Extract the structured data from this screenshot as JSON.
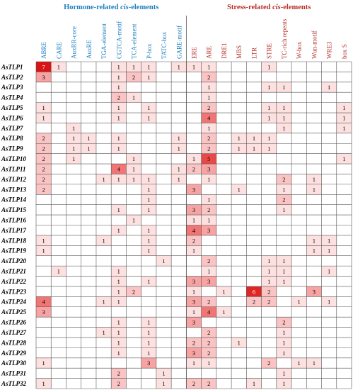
{
  "chart_data": {
    "type": "heatmap",
    "group_titles": [
      {
        "prefix": "Hormone-related ",
        "italic": "cis",
        "suffix": "-elements",
        "color": "#1f7fbf"
      },
      {
        "prefix": "Stress-related ",
        "italic": "cis",
        "suffix": "-elements",
        "color": "#b5312b"
      }
    ],
    "columns": [
      "ABRE",
      "CARE",
      "AuxRR-core",
      "AuxRE",
      "TGA-element",
      "CGTCA-motif",
      "TCA-element",
      "P-box",
      "TATC-box",
      "GARE-motif",
      "ERE",
      "ARE",
      "DRE1",
      "MBS",
      "LTR",
      "STRE",
      "TC-rich repeats",
      "W-box",
      "Wun-motif",
      "WRE3",
      "box S"
    ],
    "column_groups": [
      "hormone",
      "hormone",
      "hormone",
      "hormone",
      "hormone",
      "hormone",
      "hormone",
      "hormone",
      "hormone",
      "hormone",
      "stress",
      "stress",
      "stress",
      "stress",
      "stress",
      "stress",
      "stress",
      "stress",
      "stress",
      "stress",
      "stress"
    ],
    "rows": [
      "AsTLP1",
      "AsTLP2",
      "AsTLP3",
      "AsTLP4",
      "AsTLP5",
      "AsTLP6",
      "AsTLP7",
      "AsTLP8",
      "AsTLP9",
      "AsTLP10",
      "AsTLP11",
      "AsTLP12",
      "AsTLP13",
      "AsTLP14",
      "AsTLP15",
      "AsTLP16",
      "AsTLP17",
      "AsTLP18",
      "AsTLP19",
      "AsTLP20",
      "AsTLP21",
      "AsTLP22",
      "AsTLP23",
      "AsTLP24",
      "AsTLP25",
      "AsTLP26",
      "AsTLP27",
      "AsTLP28",
      "AsTLP29",
      "AsTLP30",
      "AsTLP31",
      "AsTLP32"
    ],
    "values": [
      [
        7,
        1,
        0,
        0,
        0,
        1,
        1,
        1,
        0,
        1,
        1,
        1,
        0,
        0,
        0,
        1,
        0,
        0,
        0,
        0,
        0
      ],
      [
        3,
        0,
        0,
        0,
        0,
        1,
        2,
        1,
        0,
        0,
        0,
        2,
        0,
        0,
        0,
        0,
        0,
        0,
        0,
        0,
        0
      ],
      [
        0,
        0,
        0,
        0,
        0,
        1,
        0,
        0,
        0,
        0,
        0,
        1,
        0,
        0,
        0,
        1,
        1,
        0,
        0,
        1,
        0
      ],
      [
        0,
        0,
        0,
        0,
        0,
        2,
        1,
        0,
        0,
        0,
        0,
        1,
        0,
        0,
        0,
        0,
        0,
        0,
        0,
        0,
        0
      ],
      [
        1,
        0,
        0,
        0,
        0,
        1,
        0,
        1,
        0,
        0,
        0,
        2,
        0,
        0,
        0,
        1,
        1,
        0,
        0,
        0,
        1
      ],
      [
        1,
        0,
        0,
        0,
        0,
        1,
        0,
        1,
        0,
        0,
        0,
        4,
        0,
        0,
        0,
        1,
        1,
        0,
        0,
        0,
        1
      ],
      [
        0,
        0,
        1,
        0,
        0,
        0,
        0,
        0,
        0,
        0,
        0,
        1,
        0,
        0,
        0,
        0,
        1,
        0,
        0,
        0,
        1
      ],
      [
        2,
        0,
        1,
        1,
        0,
        1,
        0,
        0,
        0,
        1,
        0,
        2,
        0,
        1,
        1,
        1,
        0,
        0,
        0,
        0,
        0
      ],
      [
        2,
        0,
        1,
        1,
        0,
        1,
        0,
        0,
        0,
        1,
        0,
        2,
        0,
        1,
        1,
        1,
        0,
        0,
        0,
        0,
        0
      ],
      [
        2,
        0,
        1,
        0,
        0,
        0,
        1,
        0,
        0,
        0,
        1,
        5,
        0,
        0,
        0,
        0,
        0,
        0,
        0,
        0,
        1
      ],
      [
        2,
        0,
        0,
        0,
        0,
        4,
        1,
        0,
        0,
        1,
        2,
        3,
        0,
        0,
        0,
        0,
        0,
        0,
        0,
        0,
        0
      ],
      [
        2,
        0,
        0,
        0,
        1,
        1,
        1,
        1,
        0,
        1,
        0,
        1,
        0,
        0,
        0,
        0,
        2,
        0,
        1,
        0,
        0
      ],
      [
        2,
        0,
        0,
        0,
        0,
        0,
        0,
        1,
        0,
        0,
        3,
        0,
        0,
        1,
        0,
        0,
        1,
        0,
        1,
        0,
        0
      ],
      [
        0,
        0,
        0,
        0,
        0,
        0,
        0,
        1,
        0,
        0,
        0,
        1,
        0,
        0,
        0,
        0,
        2,
        0,
        0,
        0,
        0
      ],
      [
        0,
        0,
        0,
        0,
        0,
        1,
        0,
        1,
        0,
        0,
        3,
        2,
        0,
        0,
        0,
        0,
        1,
        0,
        0,
        0,
        0
      ],
      [
        0,
        0,
        0,
        0,
        0,
        0,
        1,
        0,
        0,
        0,
        1,
        1,
        0,
        0,
        0,
        0,
        0,
        0,
        0,
        0,
        0
      ],
      [
        0,
        0,
        0,
        0,
        0,
        1,
        0,
        1,
        0,
        0,
        4,
        3,
        0,
        0,
        0,
        0,
        0,
        0,
        0,
        0,
        0
      ],
      [
        1,
        0,
        0,
        0,
        1,
        0,
        0,
        1,
        0,
        0,
        2,
        0,
        0,
        0,
        0,
        0,
        0,
        0,
        1,
        1,
        0
      ],
      [
        1,
        0,
        0,
        0,
        0,
        0,
        0,
        1,
        0,
        0,
        1,
        0,
        0,
        0,
        0,
        0,
        0,
        0,
        1,
        1,
        0
      ],
      [
        0,
        0,
        0,
        0,
        0,
        0,
        0,
        0,
        1,
        0,
        0,
        2,
        0,
        0,
        0,
        1,
        1,
        0,
        0,
        0,
        0
      ],
      [
        0,
        1,
        0,
        0,
        0,
        1,
        0,
        0,
        0,
        0,
        0,
        1,
        0,
        0,
        0,
        1,
        1,
        0,
        0,
        1,
        0
      ],
      [
        0,
        0,
        0,
        0,
        0,
        1,
        0,
        1,
        0,
        0,
        3,
        3,
        0,
        0,
        0,
        1,
        1,
        0,
        0,
        0,
        0
      ],
      [
        0,
        0,
        0,
        0,
        0,
        1,
        2,
        0,
        0,
        0,
        1,
        0,
        1,
        0,
        6,
        2,
        0,
        0,
        3,
        0,
        0
      ],
      [
        4,
        0,
        0,
        0,
        1,
        1,
        0,
        0,
        0,
        0,
        3,
        2,
        0,
        0,
        2,
        2,
        0,
        1,
        0,
        1,
        0
      ],
      [
        3,
        0,
        0,
        0,
        0,
        0,
        0,
        0,
        0,
        0,
        1,
        4,
        1,
        0,
        0,
        0,
        0,
        0,
        0,
        0,
        0
      ],
      [
        0,
        0,
        0,
        0,
        0,
        1,
        0,
        1,
        0,
        0,
        3,
        0,
        0,
        0,
        0,
        0,
        2,
        0,
        0,
        0,
        0
      ],
      [
        0,
        0,
        0,
        0,
        1,
        1,
        0,
        1,
        0,
        0,
        0,
        2,
        0,
        0,
        0,
        0,
        1,
        0,
        0,
        0,
        0
      ],
      [
        0,
        0,
        0,
        0,
        0,
        1,
        0,
        1,
        0,
        0,
        2,
        2,
        0,
        1,
        0,
        0,
        1,
        0,
        0,
        0,
        0
      ],
      [
        0,
        0,
        0,
        0,
        0,
        1,
        0,
        1,
        0,
        0,
        3,
        2,
        0,
        0,
        0,
        0,
        1,
        0,
        0,
        0,
        0
      ],
      [
        1,
        0,
        0,
        0,
        0,
        0,
        0,
        3,
        0,
        0,
        1,
        1,
        0,
        0,
        0,
        2,
        0,
        1,
        1,
        0,
        0
      ],
      [
        0,
        0,
        0,
        0,
        0,
        2,
        0,
        0,
        1,
        0,
        0,
        0,
        0,
        0,
        0,
        0,
        1,
        0,
        0,
        0,
        0
      ],
      [
        1,
        0,
        0,
        0,
        0,
        2,
        0,
        0,
        1,
        0,
        2,
        2,
        0,
        0,
        1,
        0,
        1,
        0,
        0,
        0,
        0
      ]
    ],
    "color_scale": {
      "0": "#ffffff",
      "1": "#fde0e0",
      "2": "#fbc4c4",
      "3": "#f7a3a3",
      "4": "#f27575",
      "5": "#ea4848",
      "6": "#e02525",
      "7": "#d91414"
    },
    "label_colors": {
      "hormone": "#1f7fbf",
      "stress": "#b5312b",
      "rows": "#000000"
    }
  }
}
